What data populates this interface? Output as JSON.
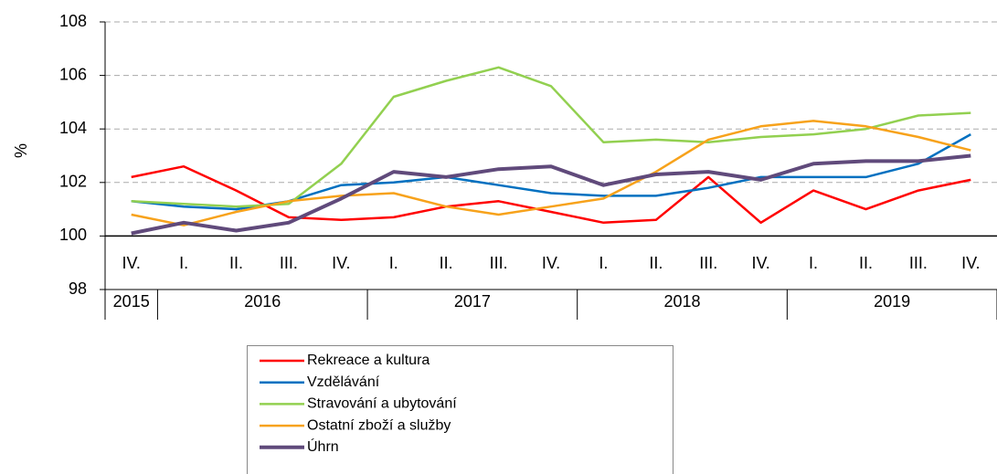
{
  "chart_data": {
    "type": "line",
    "y_label": "%",
    "categories": [
      {
        "quarter": "IV.",
        "year": "2015"
      },
      {
        "quarter": "I.",
        "year": "2016"
      },
      {
        "quarter": "II.",
        "year": "2016"
      },
      {
        "quarter": "III.",
        "year": "2016"
      },
      {
        "quarter": "IV.",
        "year": "2016"
      },
      {
        "quarter": "I.",
        "year": "2017"
      },
      {
        "quarter": "II.",
        "year": "2017"
      },
      {
        "quarter": "III.",
        "year": "2017"
      },
      {
        "quarter": "IV.",
        "year": "2017"
      },
      {
        "quarter": "I.",
        "year": "2018"
      },
      {
        "quarter": "II.",
        "year": "2018"
      },
      {
        "quarter": "III.",
        "year": "2018"
      },
      {
        "quarter": "IV.",
        "year": "2018"
      },
      {
        "quarter": "I.",
        "year": "2019"
      },
      {
        "quarter": "II.",
        "year": "2019"
      },
      {
        "quarter": "III.",
        "year": "2019"
      },
      {
        "quarter": "IV.",
        "year": "2019"
      }
    ],
    "series": [
      {
        "name": "Rekreace a kultura",
        "color": "#ff0000",
        "width": 2.5,
        "values": [
          102.2,
          102.6,
          101.7,
          100.7,
          100.6,
          100.7,
          101.1,
          101.3,
          100.9,
          100.5,
          100.6,
          102.2,
          100.5,
          101.7,
          101.0,
          101.7,
          102.1
        ]
      },
      {
        "name": "Vzdělávání",
        "color": "#0070c0",
        "width": 2.5,
        "values": [
          101.3,
          101.1,
          101.0,
          101.3,
          101.9,
          102.0,
          102.2,
          101.9,
          101.6,
          101.5,
          101.5,
          101.8,
          102.2,
          102.2,
          102.2,
          102.7,
          103.8
        ]
      },
      {
        "name": "Stravování a ubytování",
        "color": "#92d050",
        "width": 2.5,
        "values": [
          101.3,
          101.2,
          101.1,
          101.2,
          102.7,
          105.2,
          105.8,
          106.3,
          105.6,
          103.5,
          103.6,
          103.5,
          103.7,
          103.8,
          104.0,
          104.5,
          104.6
        ]
      },
      {
        "name": "Ostatní zboží a služby",
        "color": "#f7a21b",
        "width": 2.5,
        "values": [
          100.8,
          100.4,
          100.9,
          101.3,
          101.5,
          101.6,
          101.1,
          100.8,
          101.1,
          101.4,
          102.4,
          103.6,
          104.1,
          104.3,
          104.1,
          103.7,
          103.2
        ]
      },
      {
        "name": "Úhrn",
        "color": "#604a7b",
        "width": 4,
        "values": [
          100.1,
          100.5,
          100.2,
          100.5,
          101.4,
          102.4,
          102.2,
          102.5,
          102.6,
          101.9,
          102.3,
          102.4,
          102.1,
          102.7,
          102.8,
          102.8,
          103.0
        ]
      }
    ],
    "ylim": [
      98,
      108
    ],
    "yticks": [
      98,
      100,
      102,
      104,
      106,
      108
    ],
    "x_axis_crosses": 100,
    "grid": true
  }
}
